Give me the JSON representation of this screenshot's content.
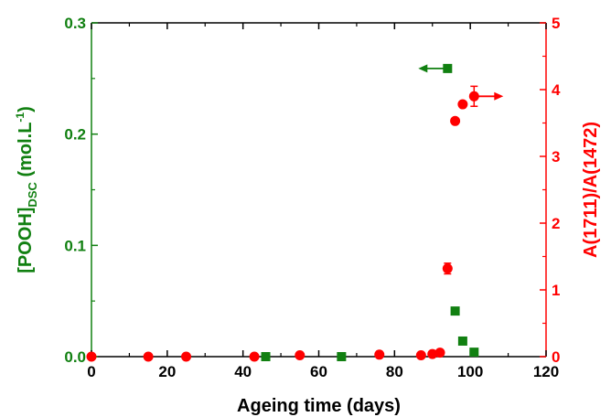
{
  "chart_data": {
    "type": "scatter",
    "xlabel": "Ageing time (days)",
    "ylabel_left": {
      "main": "[POOH]",
      "sub": "DSC",
      "unit_prefix": " (mol.L",
      "unit_sup": "-1",
      "unit_suffix": ")"
    },
    "ylabel_right": "A(1711)/A(1472)",
    "xlim": [
      0,
      120
    ],
    "ylim_left": [
      0,
      0.3
    ],
    "ylim_right": [
      0,
      5
    ],
    "x_ticks": [
      "0",
      "20",
      "40",
      "60",
      "80",
      "100",
      "120"
    ],
    "y_left_ticks": [
      "0.0",
      "0.1",
      "0.2",
      "0.3"
    ],
    "y_right_ticks": [
      "0",
      "1",
      "2",
      "3",
      "4",
      "5"
    ],
    "colors": {
      "left": "#118011",
      "right": "#ff0000",
      "axis": "#000000"
    },
    "series": [
      {
        "axis": "left",
        "marker": "square",
        "x": [
          46,
          66,
          94,
          96,
          98,
          101
        ],
        "y": [
          0.0,
          0.0,
          0.259,
          0.041,
          0.014,
          0.004
        ]
      },
      {
        "axis": "right",
        "marker": "circle",
        "x": [
          0,
          15,
          25,
          43,
          55,
          76,
          87,
          90,
          92,
          94,
          96,
          98,
          101
        ],
        "y": [
          0.0,
          0.0,
          0.0,
          0.0,
          0.02,
          0.03,
          0.02,
          0.04,
          0.06,
          1.32,
          3.53,
          3.78,
          3.9
        ],
        "yerr": [
          0,
          0,
          0,
          0,
          0,
          0,
          0,
          0,
          0,
          0.08,
          0,
          0,
          0.15
        ]
      }
    ],
    "annotations": [
      {
        "type": "arrow",
        "direction": "left",
        "axis": "left",
        "from_x": 94,
        "y": 0.259
      },
      {
        "type": "arrow",
        "direction": "right",
        "axis": "right",
        "from_x": 101,
        "y": 3.9
      }
    ]
  }
}
